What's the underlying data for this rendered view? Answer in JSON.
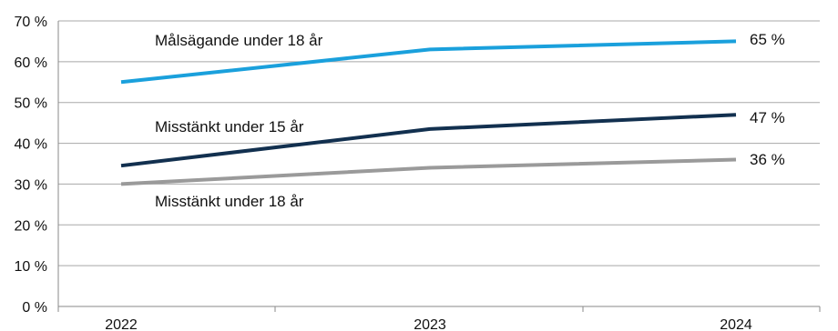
{
  "chart_data": {
    "type": "line",
    "categories": [
      "2022",
      "2023",
      "2024"
    ],
    "ylim": [
      0,
      70
    ],
    "yticks": [
      0,
      10,
      20,
      30,
      40,
      50,
      60,
      70
    ],
    "ytick_labels": [
      "0 %",
      "10 %",
      "20 %",
      "30 %",
      "40 %",
      "50 %",
      "60 %",
      "70 %"
    ],
    "grid": true,
    "series": [
      {
        "name": "Målsägande under 18 år",
        "values": [
          55,
          63,
          65
        ],
        "end_label": "65 %",
        "color": "#1aa0dc"
      },
      {
        "name": "Misstänkt under 15 år",
        "values": [
          34.5,
          43.5,
          47
        ],
        "end_label": "47 %",
        "color": "#12304f"
      },
      {
        "name": "Misstänkt under 18 år",
        "values": [
          30,
          34,
          36
        ],
        "end_label": "36 %",
        "color": "#9a9a9a"
      }
    ]
  }
}
